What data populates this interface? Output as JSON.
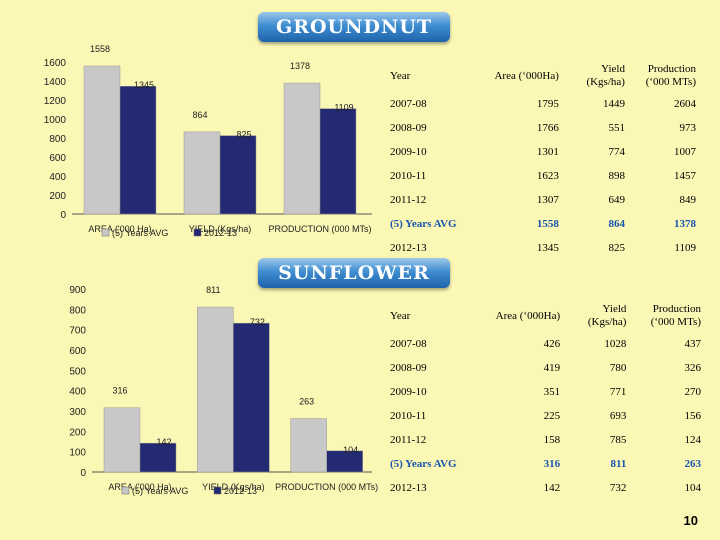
{
  "groundnut": {
    "title": "GROUNDNUT",
    "table": {
      "headers": [
        "Year",
        "Area (‘000Ha)",
        "Yield (Kgs/ha)",
        "Production (‘000 MTs)"
      ],
      "rows": [
        [
          "2007-08",
          "1795",
          "1449",
          "2604"
        ],
        [
          "2008-09",
          "1766",
          "551",
          "973"
        ],
        [
          "2009-10",
          "1301",
          "774",
          "1007"
        ],
        [
          "2010-11",
          "1623",
          "898",
          "1457"
        ],
        [
          "2011-12",
          "1307",
          "649",
          "849"
        ],
        [
          "(5) Years AVG",
          "1558",
          "864",
          "1378"
        ],
        [
          "2012-13",
          "1345",
          "825",
          "1109"
        ]
      ]
    }
  },
  "sunflower": {
    "title": "SUNFLOWER",
    "table": {
      "headers": [
        "Year",
        "Area (‘000Ha)",
        "Yield (Kgs/ha)",
        "Production (‘000 MTs)"
      ],
      "rows": [
        [
          "2007-08",
          "426",
          "1028",
          "437"
        ],
        [
          "2008-09",
          "419",
          "780",
          "326"
        ],
        [
          "2009-10",
          "351",
          "771",
          "270"
        ],
        [
          "2010-11",
          "225",
          "693",
          "156"
        ],
        [
          "2011-12",
          "158",
          "785",
          "124"
        ],
        [
          "(5) Years AVG",
          "316",
          "811",
          "263"
        ],
        [
          "2012-13",
          "142",
          "732",
          "104"
        ]
      ]
    }
  },
  "chart_data": [
    {
      "type": "bar",
      "categories": [
        "AREA ('000 Ha)",
        "YIELD (Kgs/ha)",
        "PRODUCTION (000 MTs)"
      ],
      "series": [
        {
          "name": "(5) Years AVG",
          "values": [
            1558,
            864,
            1378
          ],
          "color": "#c8c8c8"
        },
        {
          "name": "2012-13",
          "values": [
            1345,
            825,
            1109
          ],
          "color": "#232a73"
        }
      ],
      "yticks": [
        0,
        200,
        400,
        600,
        800,
        1000,
        1200,
        1400,
        1600
      ],
      "ylim": [
        0,
        1600
      ],
      "legend": "bottom-left",
      "grid": false
    },
    {
      "type": "bar",
      "categories": [
        "AREA ('000 Ha)",
        "YIELD (Kgs/ha)",
        "PRODUCTION (000 MTs)"
      ],
      "series": [
        {
          "name": "(5) Years AVG",
          "values": [
            316,
            811,
            263
          ],
          "color": "#c8c8c8"
        },
        {
          "name": "2012-13",
          "values": [
            142,
            732,
            104
          ],
          "color": "#232a73"
        }
      ],
      "yticks": [
        0,
        100,
        200,
        300,
        400,
        500,
        600,
        700,
        800,
        900
      ],
      "ylim": [
        0,
        900
      ],
      "legend": "bottom-left",
      "grid": false
    }
  ],
  "page_number": "10"
}
